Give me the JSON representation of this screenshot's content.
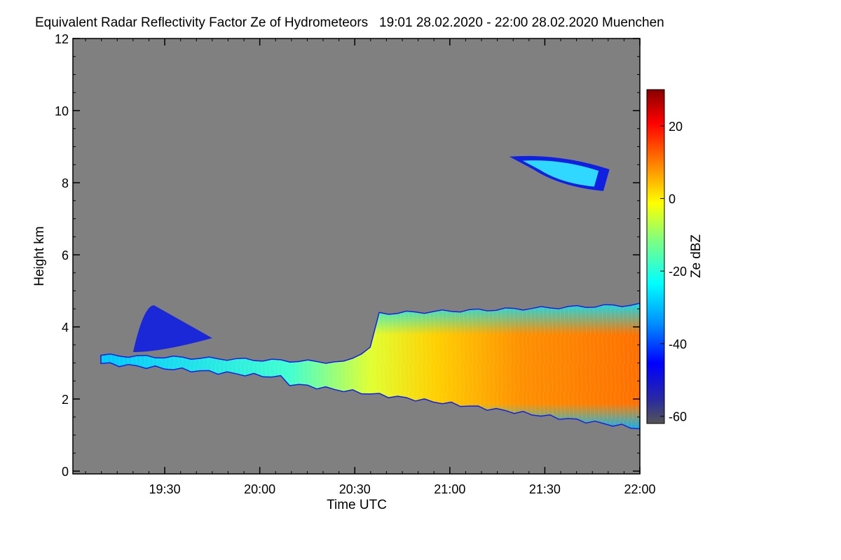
{
  "chart_data": {
    "type": "heatmap",
    "title": "Equivalent Radar Reflectivity Factor Ze of Hydrometeors   19:01 28.02.2020 - 22:00 28.02.2020 Muenchen",
    "xlabel": "Time UTC",
    "ylabel": "Height km",
    "x_range": [
      "19:01",
      "22:00"
    ],
    "x_ticks": [
      "19:30",
      "20:00",
      "20:30",
      "21:00",
      "21:30",
      "22:00"
    ],
    "y_range": [
      0,
      12
    ],
    "y_ticks": [
      "0",
      "2",
      "4",
      "6",
      "8",
      "10",
      "12"
    ],
    "colorbar": {
      "label": "Ze dBZ",
      "range": [
        -62,
        30
      ],
      "ticks": [
        "-60",
        "-40",
        "-20",
        "0",
        "20"
      ]
    },
    "background_color": "#808080",
    "features": [
      {
        "name": "main precipitation layer",
        "t_start": "19:10",
        "t_end": "22:00",
        "base_km_start": 3.0,
        "base_km_end": 1.2,
        "top_km_start": 3.2,
        "top_km_end": 4.6,
        "peak_ze_dbz": 12
      },
      {
        "name": "upper cloud",
        "t_start": "21:20",
        "t_end": "21:50",
        "base_km": 7.8,
        "top_km": 8.7,
        "ze_dbz": -30
      },
      {
        "name": "cloud patch",
        "t_start": "19:20",
        "t_end": "19:45",
        "base_km": 3.3,
        "top_km": 4.6,
        "ze_dbz": -40
      }
    ]
  }
}
